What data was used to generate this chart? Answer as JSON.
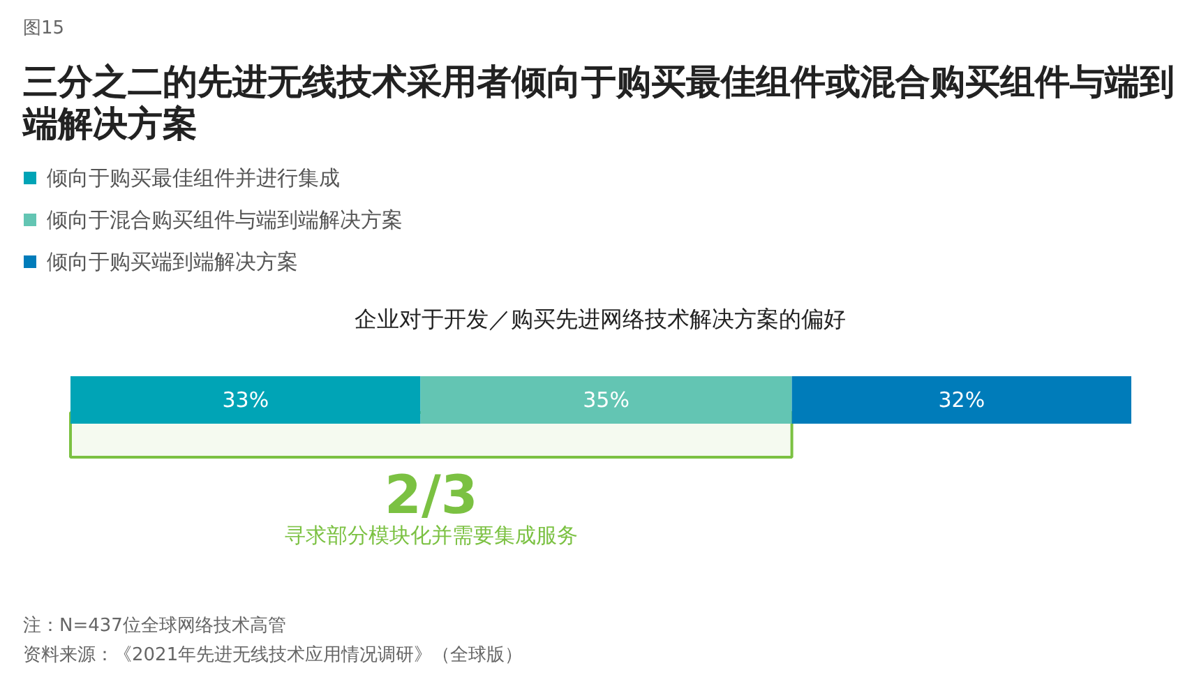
{
  "chart_data": {
    "type": "bar",
    "orientation": "horizontal",
    "stacked": true,
    "title": "三分之二的先进无线技术采用者倾向于购买最佳组件或混合购买组件与端到端解决方案",
    "subtitle": "企业对于开发／购买先进网络技术解决方案的偏好",
    "categories": [
      null
    ],
    "series": [
      {
        "name": "倾向于购买最佳组件并进行集成",
        "color": "#00a4b6",
        "values": [
          33
        ],
        "value_labels": [
          "33%"
        ]
      },
      {
        "name": "倾向于混合购买组件与端到端解决方案",
        "color": "#63c5b3",
        "values": [
          35
        ],
        "value_labels": [
          "35%"
        ]
      },
      {
        "name": "倾向于购买端到端解决方案",
        "color": "#007cba",
        "values": [
          32
        ],
        "value_labels": [
          "32%"
        ]
      }
    ],
    "legend": "top left",
    "bands": [
      {
        "axis": "x",
        "from": 0,
        "to": 68,
        "label": "2/3",
        "color": "#7bc142"
      }
    ],
    "annotations": [
      "图15",
      "寻求部分模块化并需要集成服务",
      "注：N=437位全球网络技术高管",
      "资料来源：《2021年先进无线技术应用情况调研》（全球版）"
    ]
  }
}
